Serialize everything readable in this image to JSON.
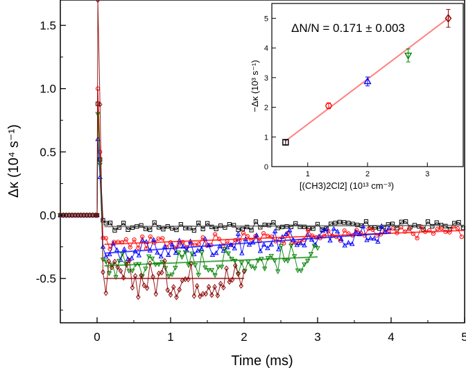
{
  "chart_data": [
    {
      "type": "scatter",
      "xlabel": "Time (ms)",
      "ylabel": "Δκ (10⁴ s⁻¹)",
      "xlim": [
        -0.5,
        5.0
      ],
      "ylim": [
        -0.85,
        1.7
      ],
      "xticks": [
        0,
        1,
        2,
        3,
        4,
        5
      ],
      "yticks": [
        -0.5,
        0.0,
        0.5,
        1.0,
        1.5
      ],
      "grid": false,
      "legend": "none",
      "series": [
        {
          "color": "#000000",
          "marker": "square",
          "t_end": 5.0,
          "spike_peak": 0.88,
          "fit": {
            "x": [
              0.1,
              5.0
            ],
            "y": [
              -0.09,
              -0.08
            ]
          },
          "noise": 0.035,
          "step": 0.06
        },
        {
          "color": "#ff0000",
          "marker": "circle",
          "t_end": 5.0,
          "spike_peak": 1.0,
          "fit": {
            "x": [
              0.1,
              5.0
            ],
            "y": [
              -0.23,
              -0.12
            ]
          },
          "noise": 0.05,
          "step": 0.055
        },
        {
          "color": "#0000ff",
          "marker": "triangle-up",
          "t_end": 4.0,
          "spike_peak": 0.6,
          "fit": {
            "x": [
              0.1,
              4.0
            ],
            "y": [
              -0.3,
              -0.14
            ]
          },
          "noise": 0.08,
          "step": 0.05
        },
        {
          "color": "#008000",
          "marker": "triangle-down",
          "t_end": 3.0,
          "spike_peak": 0.8,
          "fit": {
            "x": [
              0.1,
              3.0
            ],
            "y": [
              -0.4,
              -0.33
            ]
          },
          "noise": 0.11,
          "step": 0.045
        },
        {
          "color": "#8b0000",
          "marker": "diamond",
          "t_end": 2.0,
          "spike_peak": 1.75,
          "fit": {
            "x": [
              0.1,
              2.0
            ],
            "y": [
              -0.5,
              -0.5
            ]
          },
          "noise": 0.15,
          "step": 0.04
        }
      ]
    },
    {
      "type": "scatter",
      "xlabel": "[(CH3)2Cl2] (10¹³ cm⁻³)",
      "ylabel": "−Δκ (10³ s⁻¹)",
      "xlim": [
        0.4,
        3.6
      ],
      "ylim": [
        0,
        5.5
      ],
      "xticks": [
        1,
        2,
        3
      ],
      "yticks": [
        0,
        1,
        2,
        3,
        4,
        5
      ],
      "annotation": "ΔN/N = 0.171 ± 0.003",
      "fit_color": "#ff8080",
      "fit": {
        "x": [
          0.62,
          3.38
        ],
        "y": [
          0.85,
          5.05
        ]
      },
      "points": [
        {
          "x": 0.63,
          "y": 0.82,
          "err": 0.08,
          "color": "#000000",
          "marker": "square"
        },
        {
          "x": 1.35,
          "y": 2.05,
          "err": 0.1,
          "color": "#ff0000",
          "marker": "circle"
        },
        {
          "x": 2.0,
          "y": 2.87,
          "err": 0.15,
          "color": "#0000ff",
          "marker": "triangle-up"
        },
        {
          "x": 2.68,
          "y": 3.75,
          "err": 0.22,
          "color": "#008000",
          "marker": "triangle-down"
        },
        {
          "x": 3.35,
          "y": 5.0,
          "err": 0.3,
          "color": "#8b0000",
          "marker": "diamond"
        }
      ]
    }
  ]
}
